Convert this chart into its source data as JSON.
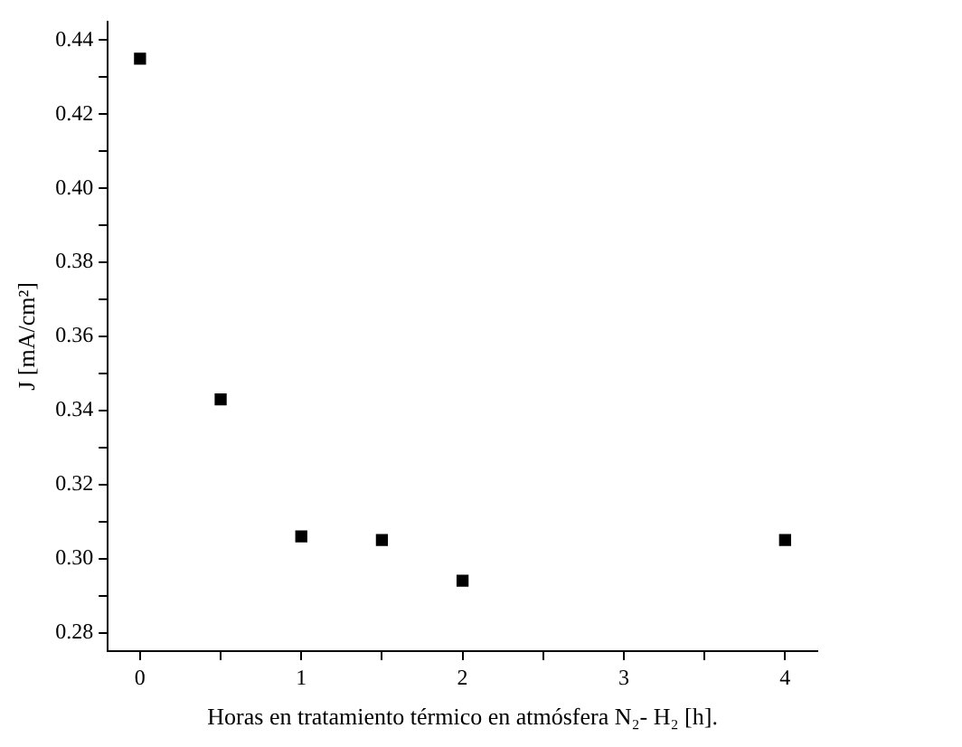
{
  "chart_data": {
    "type": "scatter",
    "xlabel": "Horas en tratamiento térmico en atmósfera N₂- H₂ [h].",
    "ylabel": "J [mA/cm²]",
    "x": [
      0,
      0.5,
      1,
      1.5,
      2,
      4
    ],
    "series": [
      {
        "color": "#000000",
        "values": [
          0.435,
          0.343,
          0.306,
          0.305,
          0.294,
          0.305
        ]
      }
    ],
    "xlim": [
      -0.2,
      4.2
    ],
    "ylim": [
      0.275,
      0.445
    ],
    "xticks": [
      0,
      {
        "value": 0.5,
        "label": null
      },
      1,
      {
        "value": 1.5,
        "label": null
      },
      2,
      {
        "value": 2.5,
        "label": null
      },
      3,
      {
        "value": 3.5,
        "label": null
      },
      4
    ],
    "yticks": [
      0.28,
      {
        "value": 0.29,
        "label": null
      },
      {
        "value": 0.3,
        "label": "0.30"
      },
      {
        "value": 0.31,
        "label": null
      },
      0.32,
      {
        "value": 0.33,
        "label": null
      },
      0.34,
      {
        "value": 0.35,
        "label": null
      },
      0.36,
      {
        "value": 0.37,
        "label": null
      },
      0.38,
      {
        "value": 0.39,
        "label": null
      },
      {
        "value": 0.4,
        "label": "0.40"
      },
      {
        "value": 0.41,
        "label": null
      },
      0.42,
      {
        "value": 0.43,
        "label": null
      },
      0.44
    ],
    "grid": false,
    "legend": false,
    "marker": "square"
  }
}
